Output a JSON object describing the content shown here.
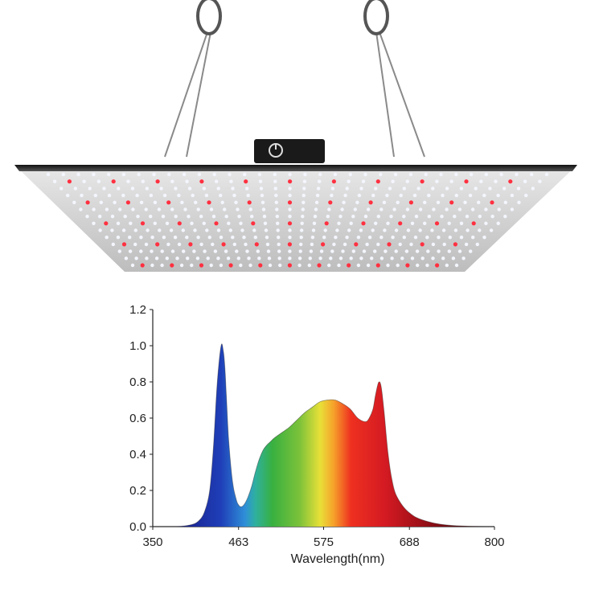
{
  "product": {
    "name": "LED grow light panel",
    "led_colors": {
      "white": "#f4f6ff",
      "red": "#ff3040"
    },
    "panel_color": "#c9c9c9",
    "driver_icon": "dimmer-knob-icon"
  },
  "chart_data": {
    "type": "area",
    "title": "",
    "xlabel": "Wavelength(nm)",
    "ylabel": "",
    "xlim": [
      350,
      800
    ],
    "ylim": [
      0,
      1.2
    ],
    "x_ticks": [
      "350",
      "463",
      "575",
      "688",
      "800"
    ],
    "y_ticks": [
      "0.0",
      "0.2",
      "0.4",
      "0.6",
      "0.8",
      "1.0",
      "1.2"
    ],
    "grid": false,
    "series": [
      {
        "x": [
          350,
          380,
          400,
          410,
          418,
          425,
          430,
          435,
          440,
          443,
          445,
          447,
          450,
          455,
          460,
          463,
          466,
          470,
          475,
          480,
          485,
          490,
          495,
          500,
          505,
          510,
          520,
          530,
          540,
          550,
          560,
          570,
          580,
          590,
          600,
          610,
          620,
          630,
          635,
          640,
          643,
          646,
          648,
          650,
          652,
          655,
          660,
          665,
          670,
          680,
          690,
          700,
          720,
          740,
          760,
          780,
          800
        ],
        "values": [
          0,
          0,
          0.01,
          0.03,
          0.08,
          0.2,
          0.45,
          0.8,
          1.0,
          0.97,
          0.88,
          0.72,
          0.48,
          0.25,
          0.15,
          0.12,
          0.11,
          0.12,
          0.16,
          0.22,
          0.3,
          0.37,
          0.42,
          0.45,
          0.47,
          0.49,
          0.52,
          0.55,
          0.59,
          0.63,
          0.66,
          0.69,
          0.7,
          0.7,
          0.68,
          0.65,
          0.6,
          0.58,
          0.6,
          0.65,
          0.72,
          0.78,
          0.8,
          0.79,
          0.74,
          0.62,
          0.4,
          0.26,
          0.18,
          0.11,
          0.07,
          0.045,
          0.02,
          0.008,
          0.003,
          0.001,
          0
        ]
      }
    ],
    "colors": {
      "axis": "#222222",
      "outline": "#333333"
    }
  }
}
